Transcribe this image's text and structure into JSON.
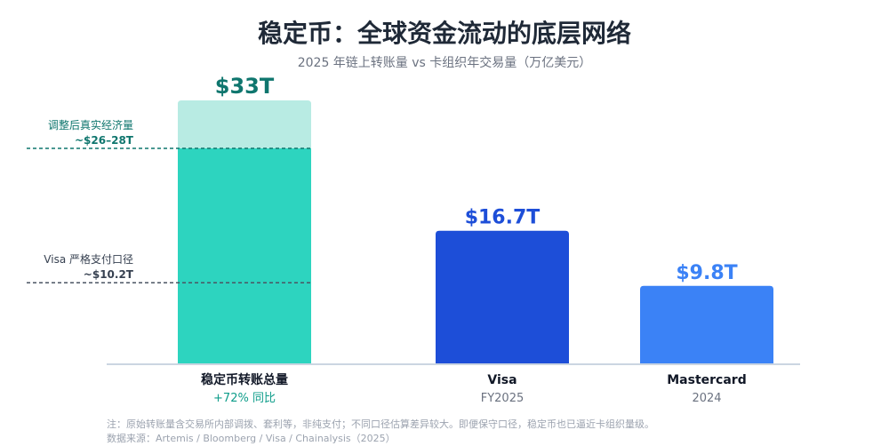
{
  "title": "稳定币：全球资金流动的底层网络",
  "subtitle": "2025 年链上转账量 vs 卡组织年交易量（万亿美元）",
  "chart_data": {
    "type": "bar",
    "unit": "万亿美元",
    "categories": [
      "稳定币转账总量",
      "Visa",
      "Mastercard"
    ],
    "category_sublabels": [
      "+72% 同比",
      "FY2025",
      "2024"
    ],
    "values": [
      33,
      16.7,
      9.8
    ],
    "value_labels": [
      "$33T",
      "$16.7T",
      "$9.8T"
    ],
    "ylim": [
      0,
      36
    ],
    "grid": false,
    "colors": {
      "stablecoin_light": "#b8ebe3",
      "stablecoin": "#2dd4bf",
      "visa": "#1d4ed8",
      "mastercard": "#3b82f6",
      "stablecoin_label": "#0f766e",
      "visa_label": "#1d4ed8",
      "mastercard_label": "#3b82f6",
      "sublabel_growth": "#0f9d8a"
    },
    "reference_lines": [
      {
        "value": 27,
        "label_line1": "调整后真实经济量",
        "label_line2": "~$26–28T",
        "color": "#0f766e"
      },
      {
        "value": 10.2,
        "label_line1": "Visa 严格支付口径",
        "label_line2": "~$10.2T",
        "color": "#4b5563"
      }
    ]
  },
  "footer": {
    "note": "注：原始转账量含交易所内部调拨、套利等，非纯支付；不同口径估算差异较大。即便保守口径，稳定币也已逼近卡组织量级。",
    "source": "数据来源：Artemis / Bloomberg / Visa / Chainalysis（2025）"
  }
}
